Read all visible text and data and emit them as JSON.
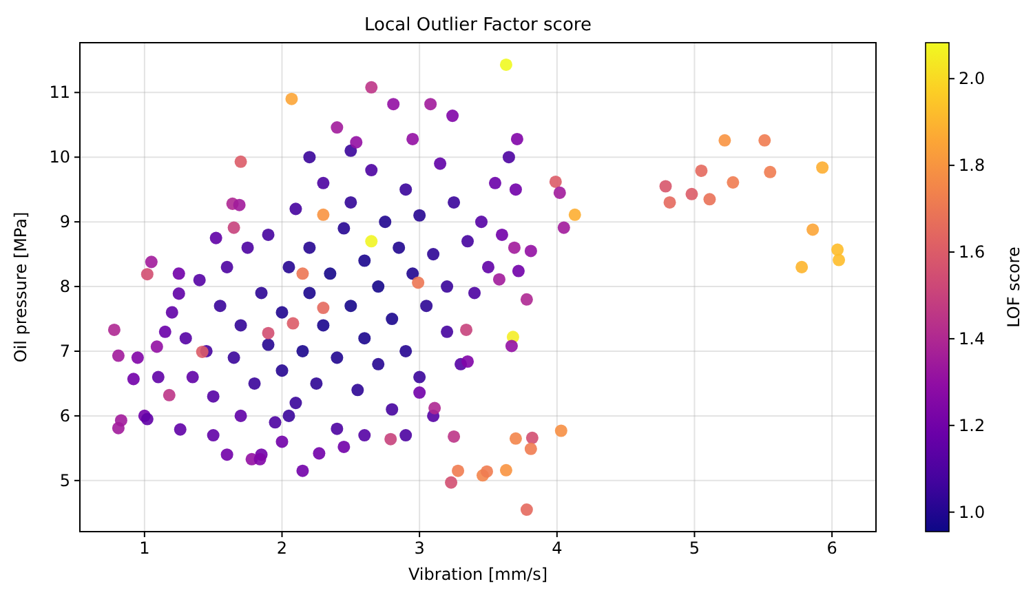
{
  "chart_data": {
    "type": "scatter",
    "title": "Local Outlier Factor score",
    "xlabel": "Vibration [mm/s]",
    "ylabel": "Oil pressure [MPa]",
    "clabel": "LOF score",
    "marker": "circle",
    "grid": true,
    "xlim": [
      0.53,
      6.32
    ],
    "ylim": [
      4.21,
      11.77
    ],
    "xticks": [
      1,
      2,
      3,
      4,
      5,
      6
    ],
    "yticks": [
      5,
      6,
      7,
      8,
      9,
      10,
      11
    ],
    "clim": [
      0.955,
      2.083
    ],
    "cticks": [
      {
        "value": 1,
        "label": "1.0"
      },
      {
        "value": 1.2,
        "label": "1.2"
      },
      {
        "value": 1.4,
        "label": "1.4"
      },
      {
        "value": 1.6,
        "label": "1.6"
      },
      {
        "value": 1.8,
        "label": "1.8"
      },
      {
        "value": 2,
        "label": "2.0"
      }
    ],
    "x": [
      1.2,
      1.3,
      1.35,
      1.4,
      1.45,
      1.5,
      1.55,
      1.6,
      1.65,
      1.7,
      1.7,
      1.75,
      1.8,
      1.85,
      1.9,
      1.9,
      1.95,
      2.0,
      2.0,
      2.05,
      2.1,
      2.1,
      2.15,
      2.2,
      2.2,
      2.25,
      2.3,
      2.3,
      2.35,
      2.4,
      2.4,
      2.45,
      2.5,
      2.5,
      2.55,
      2.6,
      2.6,
      2.65,
      2.7,
      2.7,
      2.75,
      2.8,
      2.8,
      2.85,
      2.9,
      2.9,
      2.95,
      3.0,
      3.0,
      3.05,
      3.1,
      3.15,
      3.2,
      3.2,
      3.25,
      3.3,
      3.35,
      3.4,
      3.45,
      3.5,
      3.55,
      3.6,
      3.7,
      3.65,
      2.2,
      2.5,
      1.5,
      1.6,
      1.85,
      2.05,
      2.6,
      2.9,
      3.1,
      1.1,
      1.15,
      1.25,
      0.95,
      1.0,
      3.63,
      5.22,
      5.51,
      5.05,
      5.55,
      5.93,
      4.79,
      4.98,
      5.28,
      4.82,
      5.11,
      3.99,
      4.02,
      4.13,
      4.05,
      5.86,
      6.04,
      6.05,
      5.78,
      3.68,
      3.67,
      3.78,
      3.58,
      3.69,
      3.81,
      3.72,
      3.71,
      3.08,
      3.24,
      3.11,
      3.25,
      3.7,
      3.82,
      3.81,
      4.03,
      3.28,
      3.23,
      3.46,
      3.49,
      3.63,
      3.78,
      3.35,
      3.34,
      3.0,
      2.07,
      2.65,
      1.7,
      2.65,
      2.3,
      2.15,
      2.99,
      2.3,
      2.08,
      1.9,
      1.42,
      1.02,
      0.78,
      0.81,
      0.81,
      0.83,
      1.02,
      0.92,
      2.15,
      1.78,
      1.84,
      2.0,
      2.27,
      2.45,
      2.79,
      2.81,
      2.4,
      2.95,
      2.54,
      1.64,
      1.69,
      1.65,
      1.52,
      1.05,
      1.25,
      1.09,
      1.18,
      1.26
    ],
    "values": [
      7.6,
      7.2,
      6.6,
      8.1,
      7.0,
      6.3,
      7.7,
      8.3,
      6.9,
      6.0,
      7.4,
      8.6,
      6.5,
      7.9,
      7.1,
      8.8,
      5.9,
      6.7,
      7.6,
      8.3,
      9.2,
      6.2,
      7.0,
      7.9,
      8.6,
      6.5,
      9.6,
      7.4,
      8.2,
      6.9,
      5.8,
      8.9,
      7.7,
      9.3,
      6.4,
      8.4,
      7.2,
      9.8,
      6.8,
      8.0,
      9.0,
      7.5,
      6.1,
      8.6,
      9.5,
      7.0,
      8.2,
      6.6,
      9.1,
      7.7,
      8.5,
      9.9,
      7.3,
      8.0,
      9.3,
      6.8,
      8.7,
      7.9,
      9.0,
      8.3,
      9.6,
      8.8,
      9.5,
      10.0,
      10.0,
      10.1,
      5.7,
      5.4,
      5.4,
      6.0,
      5.7,
      5.7,
      6.0,
      6.6,
      7.3,
      8.2,
      6.9,
      6.0,
      11.43,
      10.26,
      10.26,
      9.79,
      9.77,
      9.84,
      9.55,
      9.43,
      9.61,
      9.3,
      9.35,
      9.62,
      9.45,
      9.11,
      8.91,
      8.88,
      8.57,
      8.41,
      8.3,
      7.22,
      7.08,
      7.8,
      8.11,
      8.6,
      8.55,
      8.24,
      10.28,
      10.82,
      10.64,
      6.12,
      5.68,
      5.65,
      5.66,
      5.49,
      5.77,
      5.15,
      4.97,
      5.08,
      5.14,
      5.16,
      4.55,
      6.84,
      7.33,
      6.36,
      10.9,
      11.08,
      9.93,
      8.7,
      9.11,
      8.2,
      8.06,
      7.67,
      7.43,
      7.28,
      6.99,
      8.19,
      7.33,
      6.93,
      5.81,
      5.93,
      5.95,
      6.57,
      5.15,
      5.33,
      5.33,
      5.6,
      5.42,
      5.52,
      5.64,
      10.82,
      10.46,
      10.28,
      10.23,
      9.28,
      9.26,
      8.91,
      8.75,
      8.38,
      7.89,
      7.07,
      6.32,
      5.79
    ],
    "cvalues": [
      1.15,
      1.12,
      1.15,
      1.12,
      1.08,
      1.12,
      1.05,
      1.1,
      1.05,
      1.15,
      1.03,
      1.1,
      1.05,
      1.02,
      1.0,
      1.08,
      1.1,
      1.0,
      0.99,
      1.0,
      1.08,
      1.05,
      0.98,
      0.98,
      1.0,
      1.02,
      1.1,
      0.98,
      0.97,
      0.99,
      1.1,
      1.0,
      0.97,
      1.03,
      1.02,
      0.98,
      0.98,
      1.1,
      1.0,
      0.97,
      0.99,
      0.98,
      1.08,
      0.99,
      1.05,
      1.0,
      0.99,
      1.05,
      1.0,
      1.02,
      1.02,
      1.15,
      1.08,
      1.05,
      1.05,
      1.12,
      1.08,
      1.1,
      1.12,
      1.15,
      1.18,
      1.2,
      1.2,
      1.1,
      1.05,
      1.05,
      1.15,
      1.2,
      1.2,
      1.05,
      1.12,
      1.1,
      1.12,
      1.15,
      1.18,
      1.2,
      1.25,
      1.2,
      2.08,
      1.8,
      1.72,
      1.65,
      1.72,
      1.88,
      1.58,
      1.6,
      1.72,
      1.65,
      1.68,
      1.6,
      1.35,
      1.88,
      1.35,
      1.85,
      1.92,
      1.92,
      1.9,
      2.05,
      1.3,
      1.4,
      1.35,
      1.35,
      1.3,
      1.2,
      1.25,
      1.35,
      1.25,
      1.4,
      1.45,
      1.75,
      1.55,
      1.72,
      1.78,
      1.72,
      1.55,
      1.75,
      1.72,
      1.8,
      1.65,
      1.25,
      1.5,
      1.2,
      1.85,
      1.45,
      1.6,
      2.07,
      1.8,
      1.7,
      1.7,
      1.65,
      1.6,
      1.55,
      1.6,
      1.55,
      1.4,
      1.35,
      1.35,
      1.35,
      1.15,
      1.2,
      1.2,
      1.3,
      1.25,
      1.2,
      1.2,
      1.2,
      1.5,
      1.3,
      1.35,
      1.3,
      1.3,
      1.4,
      1.35,
      1.5,
      1.15,
      1.35,
      1.15,
      1.3,
      1.45,
      1.15
    ]
  }
}
